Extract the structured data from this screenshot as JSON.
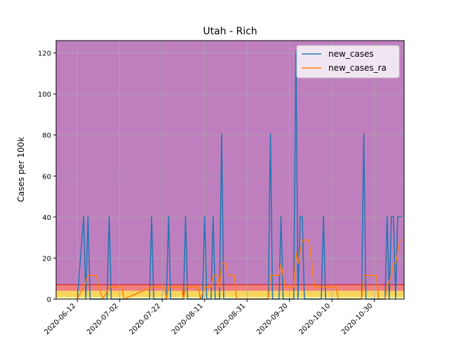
{
  "chart_data": {
    "type": "line",
    "title": "Utah - Rich",
    "xlabel": "",
    "ylabel": "Cases per 100k",
    "xlim": [
      "2020-06-02",
      "2020-11-13"
    ],
    "ylim": [
      0,
      126
    ],
    "x_ticks": [
      "2020-06-12",
      "2020-07-02",
      "2020-07-22",
      "2020-08-11",
      "2020-08-31",
      "2020-09-20",
      "2020-10-10",
      "2020-10-30"
    ],
    "y_ticks": [
      0,
      20,
      40,
      60,
      80,
      100,
      120
    ],
    "grid": true,
    "legend_position": "top-right",
    "background_bands": [
      {
        "from": 0,
        "to": 1,
        "color": "#f5f5b0"
      },
      {
        "from": 1,
        "to": 4,
        "color": "#f7d65a"
      },
      {
        "from": 4,
        "to": 7,
        "color": "#f08080"
      },
      {
        "from": 7,
        "to": 126,
        "color": "#bf7fbf"
      }
    ],
    "series": [
      {
        "name": "new_cases",
        "color": "#1f77b4",
        "points": [
          [
            "2020-06-12",
            0
          ],
          [
            "2020-06-15",
            40.3
          ],
          [
            "2020-06-16",
            0
          ],
          [
            "2020-06-17",
            40.3
          ],
          [
            "2020-06-18",
            0
          ],
          [
            "2020-06-26",
            0
          ],
          [
            "2020-06-27",
            40.3
          ],
          [
            "2020-06-28",
            0
          ],
          [
            "2020-07-16",
            0
          ],
          [
            "2020-07-17",
            40.3
          ],
          [
            "2020-07-18",
            0
          ],
          [
            "2020-07-24",
            0
          ],
          [
            "2020-07-25",
            40.3
          ],
          [
            "2020-07-26",
            0
          ],
          [
            "2020-08-01",
            0
          ],
          [
            "2020-08-02",
            40.3
          ],
          [
            "2020-08-03",
            0
          ],
          [
            "2020-08-10",
            0
          ],
          [
            "2020-08-11",
            40.3
          ],
          [
            "2020-08-12",
            0
          ],
          [
            "2020-08-14",
            0
          ],
          [
            "2020-08-15",
            40.3
          ],
          [
            "2020-08-16",
            0
          ],
          [
            "2020-08-18",
            0
          ],
          [
            "2020-08-19",
            80.6
          ],
          [
            "2020-08-20",
            0
          ],
          [
            "2020-09-10",
            0
          ],
          [
            "2020-09-11",
            80.6
          ],
          [
            "2020-09-12",
            0
          ],
          [
            "2020-09-15",
            0
          ],
          [
            "2020-09-16",
            40.3
          ],
          [
            "2020-09-17",
            0
          ],
          [
            "2020-09-22",
            0
          ],
          [
            "2020-09-23",
            120.9
          ],
          [
            "2020-09-24",
            0
          ],
          [
            "2020-09-25",
            40.3
          ],
          [
            "2020-09-26",
            40.3
          ],
          [
            "2020-09-27",
            0
          ],
          [
            "2020-10-05",
            0
          ],
          [
            "2020-10-06",
            40.3
          ],
          [
            "2020-10-07",
            0
          ],
          [
            "2020-10-24",
            0
          ],
          [
            "2020-10-25",
            80.6
          ],
          [
            "2020-10-26",
            0
          ],
          [
            "2020-11-04",
            0
          ],
          [
            "2020-11-05",
            40.3
          ],
          [
            "2020-11-06",
            0
          ],
          [
            "2020-11-07",
            40.3
          ],
          [
            "2020-11-08",
            40.3
          ],
          [
            "2020-11-09",
            0
          ],
          [
            "2020-11-10",
            40.3
          ],
          [
            "2020-11-12",
            40.3
          ]
        ]
      },
      {
        "name": "new_cases_ra",
        "color": "#ff7f0e",
        "points": [
          [
            "2020-06-12",
            0
          ],
          [
            "2020-06-15",
            5.8
          ],
          [
            "2020-06-17",
            11.5
          ],
          [
            "2020-06-21",
            11.5
          ],
          [
            "2020-06-22",
            5.8
          ],
          [
            "2020-06-24",
            0
          ],
          [
            "2020-06-27",
            5.8
          ],
          [
            "2020-07-03",
            5.8
          ],
          [
            "2020-07-04",
            0
          ],
          [
            "2020-07-17",
            5.8
          ],
          [
            "2020-07-23",
            5.8
          ],
          [
            "2020-07-24",
            0
          ],
          [
            "2020-07-25",
            5.8
          ],
          [
            "2020-07-31",
            5.8
          ],
          [
            "2020-08-01",
            0
          ],
          [
            "2020-08-02",
            5.8
          ],
          [
            "2020-08-08",
            5.8
          ],
          [
            "2020-08-09",
            0
          ],
          [
            "2020-08-11",
            5.8
          ],
          [
            "2020-08-14",
            5.8
          ],
          [
            "2020-08-15",
            11.5
          ],
          [
            "2020-08-17",
            11.5
          ],
          [
            "2020-08-18",
            5.8
          ],
          [
            "2020-08-19",
            17.3
          ],
          [
            "2020-08-21",
            17.3
          ],
          [
            "2020-08-22",
            11.5
          ],
          [
            "2020-08-25",
            11.5
          ],
          [
            "2020-08-26",
            0
          ],
          [
            "2020-09-10",
            0
          ],
          [
            "2020-09-11",
            11.5
          ],
          [
            "2020-09-15",
            11.5
          ],
          [
            "2020-09-16",
            17.3
          ],
          [
            "2020-09-17",
            11.5
          ],
          [
            "2020-09-18",
            5.8
          ],
          [
            "2020-09-22",
            5.8
          ],
          [
            "2020-09-23",
            23.0
          ],
          [
            "2020-09-24",
            17.3
          ],
          [
            "2020-09-25",
            23.0
          ],
          [
            "2020-09-26",
            28.8
          ],
          [
            "2020-09-29",
            28.8
          ],
          [
            "2020-09-30",
            23.0
          ],
          [
            "2020-10-01",
            11.5
          ],
          [
            "2020-10-02",
            5.8
          ],
          [
            "2020-10-04",
            5.8
          ],
          [
            "2020-10-06",
            5.8
          ],
          [
            "2020-10-12",
            5.8
          ],
          [
            "2020-10-13",
            0
          ],
          [
            "2020-10-24",
            0
          ],
          [
            "2020-10-25",
            11.5
          ],
          [
            "2020-10-31",
            11.5
          ],
          [
            "2020-11-01",
            0
          ],
          [
            "2020-11-04",
            0
          ],
          [
            "2020-11-05",
            5.8
          ],
          [
            "2020-11-07",
            11.5
          ],
          [
            "2020-11-08",
            17.3
          ],
          [
            "2020-11-09",
            17.3
          ],
          [
            "2020-11-10",
            23.0
          ],
          [
            "2020-11-11",
            28.8
          ],
          [
            "2020-11-12",
            28.8
          ]
        ]
      }
    ]
  }
}
